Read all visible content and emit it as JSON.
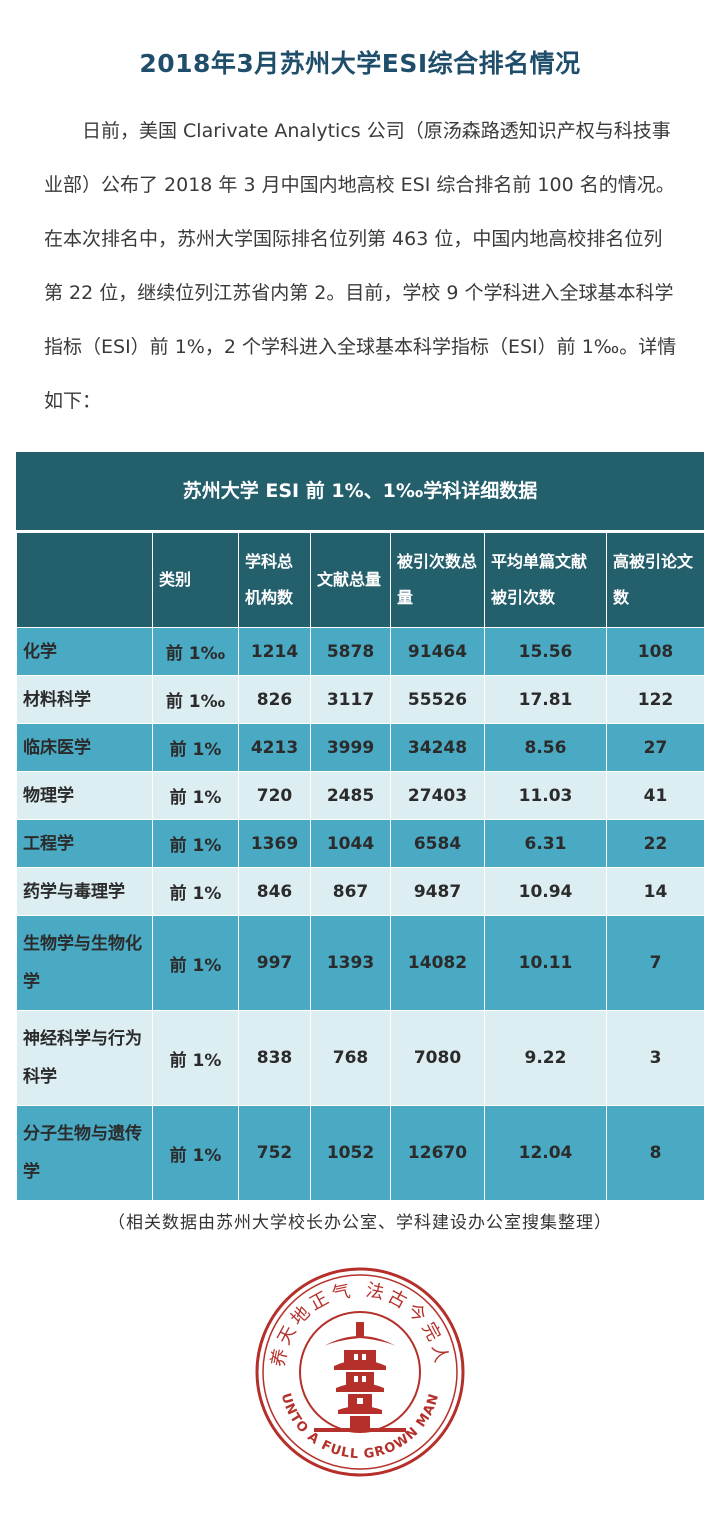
{
  "title": "2018年3月苏州大学ESI综合排名情况",
  "intro": "日前，美国 Clarivate Analytics 公司（原汤森路透知识产权与科技事业部）公布了 2018 年 3 月中国内地高校 ESI 综合排名前 100 名的情况。在本次排名中，苏州大学国际排名位列第 463 位，中国内地高校排名位列第 22 位，继续位列江苏省内第 2。目前，学校 9 个学科进入全球基本科学指标（ESI）前 1%，2 个学科进入全球基本科学指标（ESI）前 1‰。详情如下：",
  "table": {
    "caption": "苏州大学 ESI 前 1%、1‰学科详细数据",
    "headers": [
      "",
      "类别",
      "学科总机构数",
      "文献总量",
      "被引次数总量",
      "平均单篇文献被引次数",
      "高被引论文数"
    ],
    "rows": [
      {
        "subject": "化学",
        "category": "前 1‰",
        "institutions": "1214",
        "papers": "5878",
        "citations": "91464",
        "avg": "15.56",
        "highly_cited": "108"
      },
      {
        "subject": "材料科学",
        "category": "前 1‰",
        "institutions": "826",
        "papers": "3117",
        "citations": "55526",
        "avg": "17.81",
        "highly_cited": "122"
      },
      {
        "subject": "临床医学",
        "category": "前 1%",
        "institutions": "4213",
        "papers": "3999",
        "citations": "34248",
        "avg": "8.56",
        "highly_cited": "27"
      },
      {
        "subject": "物理学",
        "category": "前 1%",
        "institutions": "720",
        "papers": "2485",
        "citations": "27403",
        "avg": "11.03",
        "highly_cited": "41"
      },
      {
        "subject": "工程学",
        "category": "前 1%",
        "institutions": "1369",
        "papers": "1044",
        "citations": "6584",
        "avg": "6.31",
        "highly_cited": "22"
      },
      {
        "subject": "药学与毒理学",
        "category": "前 1%",
        "institutions": "846",
        "papers": "867",
        "citations": "9487",
        "avg": "10.94",
        "highly_cited": "14"
      },
      {
        "subject": "生物学与生物化学",
        "category": "前 1%",
        "institutions": "997",
        "papers": "1393",
        "citations": "14082",
        "avg": "10.11",
        "highly_cited": "7"
      },
      {
        "subject": "神经科学与行为科学",
        "category": "前 1%",
        "institutions": "838",
        "papers": "768",
        "citations": "7080",
        "avg": "9.22",
        "highly_cited": "3"
      },
      {
        "subject": "分子生物与遗传学",
        "category": "前 1%",
        "institutions": "752",
        "papers": "1052",
        "citations": "12670",
        "avg": "12.04",
        "highly_cited": "8"
      }
    ]
  },
  "note": "（相关数据由苏州大学校长办公室、学科建设办公室搜集整理）",
  "seal": {
    "top_text": "养天地正气 法古今完人",
    "bottom_text": "UNTO A FULL GROWN MAN",
    "color": "#b5302a"
  }
}
